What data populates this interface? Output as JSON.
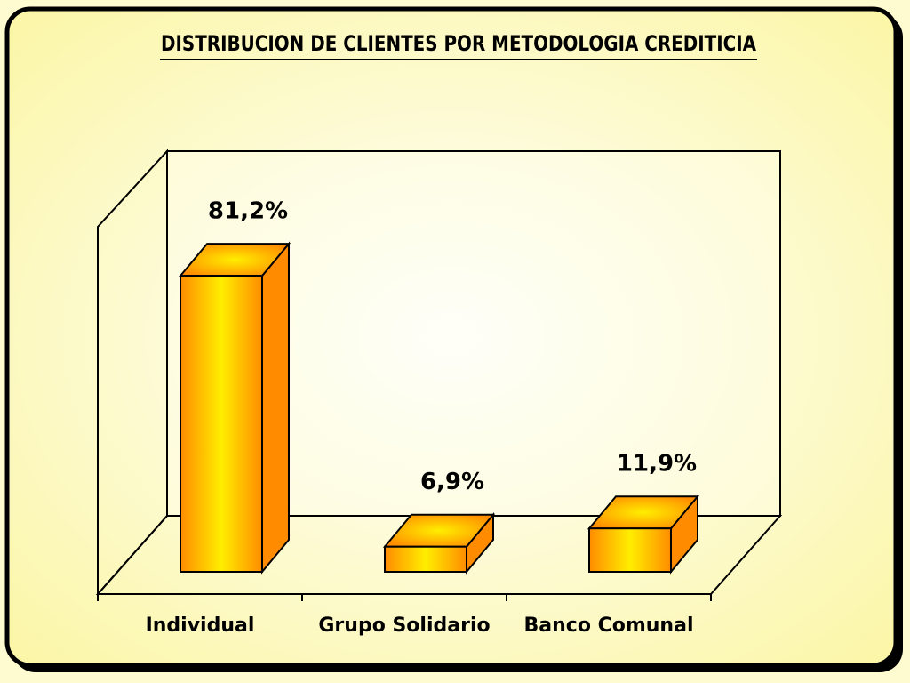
{
  "chart_data": {
    "type": "bar3d",
    "title": "DISTRIBUCION DE CLIENTES POR METODOLOGIA CREDITICIA",
    "categories": [
      "Individual",
      "Grupo Solidario",
      "Banco Comunal"
    ],
    "values": [
      81.2,
      6.9,
      11.9
    ],
    "value_labels": [
      "81,2%",
      "6,9%",
      "11,9%"
    ],
    "color": "#ff8c00",
    "ylim": [
      0,
      100
    ]
  }
}
